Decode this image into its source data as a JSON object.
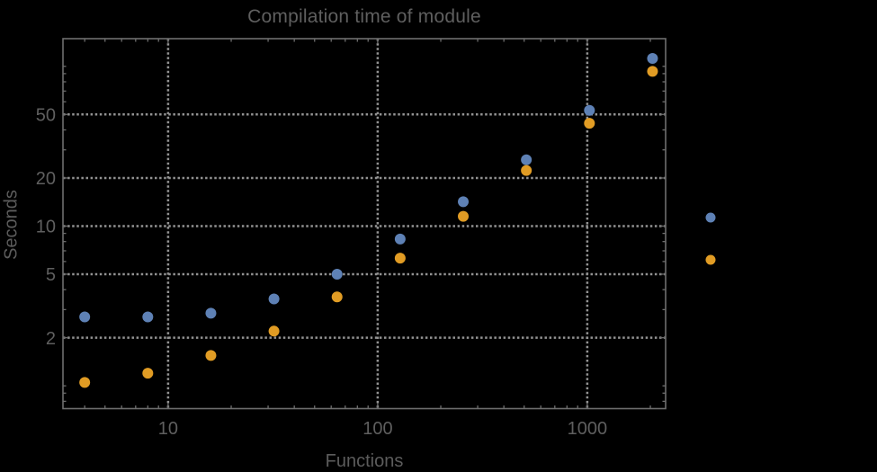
{
  "page": {
    "background_color": "#000000",
    "text_color": "#5f5f5f",
    "frame_color": "#6e6e6e",
    "grid_color": "#929292"
  },
  "chart_data": {
    "type": "scatter",
    "title": "Compilation time of module",
    "xlabel": "Functions",
    "ylabel": "Seconds",
    "x_scale": "log",
    "y_scale": "log",
    "xlim": [
      3.15,
      2365
    ],
    "ylim": [
      0.72,
      149
    ],
    "grid": {
      "style": "dotted",
      "x_values": [
        10,
        100,
        1000
      ],
      "y_values": [
        2,
        5,
        10,
        20,
        50
      ]
    },
    "x_major_ticks": [
      {
        "value": 10,
        "label": "10"
      },
      {
        "value": 100,
        "label": "100"
      },
      {
        "value": 1000,
        "label": "1000"
      }
    ],
    "x_minor_ticks": [
      4,
      5,
      6,
      7,
      8,
      9,
      20,
      30,
      40,
      50,
      60,
      70,
      80,
      90,
      200,
      300,
      400,
      500,
      600,
      700,
      800,
      900,
      2000
    ],
    "y_major_ticks": [
      {
        "value": 2,
        "label": "2"
      },
      {
        "value": 5,
        "label": "5"
      },
      {
        "value": 10,
        "label": "10"
      },
      {
        "value": 20,
        "label": "20"
      },
      {
        "value": 50,
        "label": "50"
      }
    ],
    "y_minor_ticks": [
      0.8,
      0.9,
      1,
      3,
      4,
      6,
      7,
      8,
      9,
      30,
      40,
      60,
      70,
      80,
      90,
      100
    ],
    "x": [
      4,
      8,
      16,
      32,
      64,
      128,
      256,
      512,
      1024,
      2048
    ],
    "series": [
      {
        "name": "",
        "color": "#5e81b5",
        "values": [
          2.7,
          2.7,
          2.85,
          3.5,
          5.0,
          8.3,
          14.2,
          26,
          53,
          112
        ]
      },
      {
        "name": "",
        "color": "#e19c24",
        "values": [
          1.05,
          1.2,
          1.55,
          2.2,
          3.6,
          6.3,
          11.5,
          22.3,
          44,
          93
        ]
      }
    ],
    "legend": {
      "position": "right-outside",
      "marker_colors": [
        "#5e81b5",
        "#e19c24"
      ],
      "labels_visible": false
    }
  }
}
